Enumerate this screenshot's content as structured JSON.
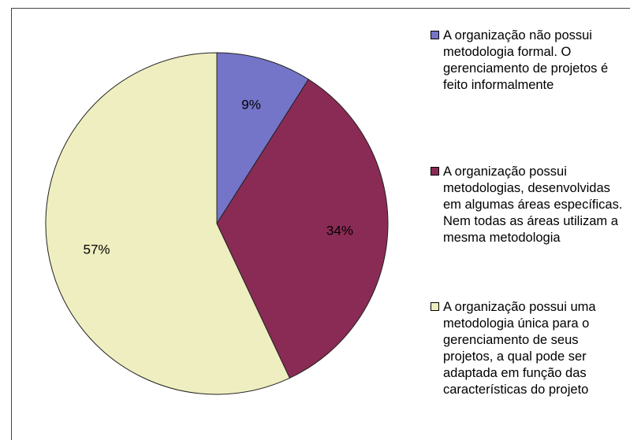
{
  "chart_data": {
    "type": "pie",
    "categories": [
      "A organização não possui metodologia formal. O gerenciamento de projetos é feito informalmente",
      "A organização possui metodologias, desenvolvidas em algumas áreas específicas. Nem todas as áreas utilizam a mesma metodologia",
      "A organização possui uma metodologia única para o gerenciamento de seus projetos, a qual pode ser adaptada em função das características do projeto"
    ],
    "values": [
      9,
      34,
      57
    ],
    "value_labels": [
      "9%",
      "34%",
      "57%"
    ],
    "colors": [
      "#7474c8",
      "#8a2b55",
      "#eeeec0"
    ]
  }
}
